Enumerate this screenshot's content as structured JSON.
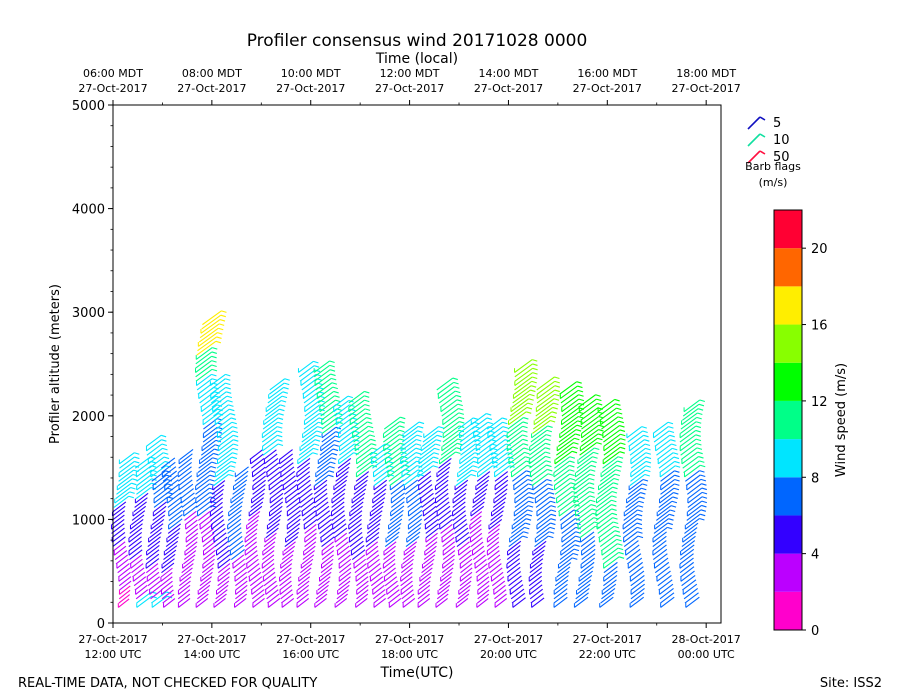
{
  "chart_data": {
    "type": "wind-barb-profile",
    "title": "Profiler consensus wind 20171028 0000",
    "top_axis_title": "Time (local)",
    "top_ticks": [
      {
        "hour": 12,
        "line1": "06:00 MDT",
        "line2": "27-Oct-2017"
      },
      {
        "hour": 14,
        "line1": "08:00 MDT",
        "line2": "27-Oct-2017"
      },
      {
        "hour": 16,
        "line1": "10:00 MDT",
        "line2": "27-Oct-2017"
      },
      {
        "hour": 18,
        "line1": "12:00 MDT",
        "line2": "27-Oct-2017"
      },
      {
        "hour": 20,
        "line1": "14:00 MDT",
        "line2": "27-Oct-2017"
      },
      {
        "hour": 22,
        "line1": "16:00 MDT",
        "line2": "27-Oct-2017"
      },
      {
        "hour": 24,
        "line1": "18:00 MDT",
        "line2": "27-Oct-2017"
      }
    ],
    "bottom_ticks": [
      {
        "hour": 12,
        "line1": "27-Oct-2017",
        "line2": "12:00 UTC"
      },
      {
        "hour": 14,
        "line1": "27-Oct-2017",
        "line2": "14:00 UTC"
      },
      {
        "hour": 16,
        "line1": "27-Oct-2017",
        "line2": "16:00 UTC"
      },
      {
        "hour": 18,
        "line1": "27-Oct-2017",
        "line2": "18:00 UTC"
      },
      {
        "hour": 20,
        "line1": "27-Oct-2017",
        "line2": "20:00 UTC"
      },
      {
        "hour": 22,
        "line1": "27-Oct-2017",
        "line2": "22:00 UTC"
      },
      {
        "hour": 24,
        "line1": "28-Oct-2017",
        "line2": "00:00 UTC"
      }
    ],
    "xlabel": "Time(UTC)",
    "ylabel": "Profiler altitude (meters)",
    "x_range_hours_utc": [
      12,
      24.3
    ],
    "ylim": [
      0,
      5000
    ],
    "y_major_ticks": [
      0,
      1000,
      2000,
      3000,
      4000,
      5000
    ],
    "y_minor_step": 200,
    "legend": {
      "title_line1": "Barb flags",
      "title_line2": "(m/s)",
      "entries": [
        {
          "label": "5",
          "color": "#1010c0"
        },
        {
          "label": "10",
          "color": "#10e0a0"
        },
        {
          "label": "50",
          "color": "#ff1040"
        }
      ]
    },
    "colorbar": {
      "label": "Wind speed (m/s)",
      "range": [
        0,
        22
      ],
      "ticks": [
        0,
        4,
        8,
        12,
        16,
        20
      ],
      "bins": [
        {
          "from": 0,
          "to": 2,
          "color": "#ff00cc"
        },
        {
          "from": 2,
          "to": 4,
          "color": "#bb00ff"
        },
        {
          "from": 4,
          "to": 6,
          "color": "#3300ff"
        },
        {
          "from": 6,
          "to": 8,
          "color": "#0066ff"
        },
        {
          "from": 8,
          "to": 10,
          "color": "#00e5ff"
        },
        {
          "from": 10,
          "to": 12,
          "color": "#00ff88"
        },
        {
          "from": 12,
          "to": 14,
          "color": "#00ff00"
        },
        {
          "from": 14,
          "to": 16,
          "color": "#88ff00"
        },
        {
          "from": 16,
          "to": 18,
          "color": "#ffee00"
        },
        {
          "from": 18,
          "to": 20,
          "color": "#ff6600"
        },
        {
          "from": 20,
          "to": 22,
          "color": "#ff0033"
        }
      ]
    },
    "profiles": [
      {
        "hour": 12.05,
        "top": 1560,
        "segments": [
          [
            0,
            300,
            1.5
          ],
          [
            300,
            700,
            3
          ],
          [
            700,
            1100,
            5
          ],
          [
            1100,
            1600,
            9
          ]
        ]
      },
      {
        "hour": 12.4,
        "top": 1500,
        "segments": [
          [
            200,
            600,
            3
          ],
          [
            600,
            1200,
            5
          ],
          [
            1200,
            1500,
            9
          ]
        ]
      },
      {
        "hour": 12.75,
        "top": 1720,
        "segments": [
          [
            200,
            500,
            3
          ],
          [
            500,
            1100,
            5
          ],
          [
            1100,
            1400,
            7
          ],
          [
            1400,
            1720,
            9
          ]
        ]
      },
      {
        "hour": 13.05,
        "top": 1530,
        "segments": [
          [
            150,
            450,
            2.5
          ],
          [
            450,
            900,
            4.5
          ],
          [
            900,
            1530,
            6.5
          ]
        ]
      },
      {
        "hour": 13.4,
        "top": 1600,
        "segments": [
          [
            150,
            1000,
            3
          ],
          [
            1000,
            1600,
            6
          ]
        ]
      },
      {
        "hour": 13.75,
        "top": 2880,
        "segments": [
          [
            150,
            1000,
            3
          ],
          [
            1000,
            1900,
            7
          ],
          [
            1900,
            2300,
            9
          ],
          [
            2300,
            2550,
            11
          ],
          [
            2550,
            2880,
            16.5
          ]
        ]
      },
      {
        "hour": 14.05,
        "top": 2300,
        "segments": [
          [
            150,
            500,
            3
          ],
          [
            500,
            1300,
            4
          ],
          [
            1300,
            2300,
            9
          ]
        ]
      },
      {
        "hour": 14.4,
        "top": 1420,
        "segments": [
          [
            150,
            600,
            3
          ],
          [
            600,
            1420,
            6
          ]
        ]
      },
      {
        "hour": 14.75,
        "top": 1600,
        "segments": [
          [
            150,
            1000,
            3
          ],
          [
            1000,
            1600,
            5
          ]
        ]
      },
      {
        "hour": 15.1,
        "top": 2260,
        "segments": [
          [
            150,
            800,
            3
          ],
          [
            800,
            1600,
            5
          ],
          [
            1600,
            2260,
            9
          ]
        ]
      },
      {
        "hour": 15.45,
        "top": 1600,
        "segments": [
          [
            150,
            700,
            3
          ],
          [
            700,
            1600,
            5.5
          ]
        ]
      },
      {
        "hour": 15.8,
        "top": 2420,
        "segments": [
          [
            150,
            900,
            3
          ],
          [
            900,
            1500,
            5
          ],
          [
            1500,
            2420,
            9
          ]
        ]
      },
      {
        "hour": 16.15,
        "top": 2420,
        "segments": [
          [
            150,
            700,
            3
          ],
          [
            700,
            1300,
            5
          ],
          [
            1300,
            1800,
            7
          ],
          [
            1800,
            2420,
            10
          ]
        ]
      },
      {
        "hour": 16.5,
        "top": 2120,
        "segments": [
          [
            150,
            800,
            3
          ],
          [
            800,
            1500,
            5
          ],
          [
            1500,
            2120,
            9
          ]
        ]
      },
      {
        "hour": 16.85,
        "top": 2130,
        "segments": [
          [
            150,
            600,
            3
          ],
          [
            600,
            1400,
            5
          ],
          [
            1400,
            2130,
            10
          ]
        ]
      },
      {
        "hour": 17.2,
        "top": 1650,
        "segments": [
          [
            150,
            700,
            3
          ],
          [
            700,
            1300,
            5
          ],
          [
            1300,
            1650,
            9
          ]
        ]
      },
      {
        "hour": 17.55,
        "top": 1900,
        "segments": [
          [
            150,
            700,
            3
          ],
          [
            700,
            1300,
            6
          ],
          [
            1300,
            1900,
            11
          ]
        ]
      },
      {
        "hour": 17.9,
        "top": 1850,
        "segments": [
          [
            150,
            700,
            3
          ],
          [
            700,
            1300,
            6
          ],
          [
            1300,
            1850,
            9.5
          ]
        ]
      },
      {
        "hour": 18.25,
        "top": 1820,
        "segments": [
          [
            150,
            800,
            3
          ],
          [
            800,
            1400,
            5
          ],
          [
            1400,
            1820,
            9
          ]
        ]
      },
      {
        "hour": 18.6,
        "top": 2260,
        "segments": [
          [
            150,
            900,
            3
          ],
          [
            900,
            1500,
            5
          ],
          [
            1500,
            2260,
            11
          ]
        ]
      },
      {
        "hour": 18.95,
        "top": 1880,
        "segments": [
          [
            150,
            700,
            3
          ],
          [
            700,
            1300,
            5
          ],
          [
            1300,
            1880,
            9
          ]
        ]
      },
      {
        "hour": 19.3,
        "top": 1920,
        "segments": [
          [
            150,
            1000,
            2.5
          ],
          [
            1000,
            1400,
            5
          ],
          [
            1400,
            1920,
            9
          ]
        ]
      },
      {
        "hour": 19.65,
        "top": 1900,
        "segments": [
          [
            150,
            900,
            3
          ],
          [
            900,
            1400,
            5
          ],
          [
            1400,
            1900,
            9
          ]
        ]
      },
      {
        "hour": 20.05,
        "top": 2420,
        "segments": [
          [
            150,
            700,
            5
          ],
          [
            700,
            1400,
            7
          ],
          [
            1400,
            1900,
            10
          ],
          [
            1900,
            2420,
            14
          ]
        ]
      },
      {
        "hour": 20.5,
        "top": 2280,
        "segments": [
          [
            150,
            700,
            4.5
          ],
          [
            700,
            1300,
            7
          ],
          [
            1300,
            1800,
            11
          ],
          [
            1800,
            2280,
            14
          ]
        ]
      },
      {
        "hour": 21.0,
        "top": 2230,
        "segments": [
          [
            150,
            500,
            6
          ],
          [
            500,
            1000,
            7
          ],
          [
            1000,
            1500,
            10
          ],
          [
            1500,
            2230,
            13
          ]
        ]
      },
      {
        "hour": 21.4,
        "top": 2100,
        "segments": [
          [
            150,
            800,
            6.5
          ],
          [
            800,
            1600,
            10
          ],
          [
            1600,
            2100,
            13
          ]
        ]
      },
      {
        "hour": 21.85,
        "top": 2080,
        "segments": [
          [
            150,
            500,
            6.5
          ],
          [
            500,
            1500,
            10
          ],
          [
            1500,
            2080,
            12
          ]
        ]
      },
      {
        "hour": 22.4,
        "top": 1820,
        "segments": [
          [
            150,
            700,
            6.5
          ],
          [
            700,
            1300,
            7
          ],
          [
            1300,
            1820,
            9
          ]
        ]
      },
      {
        "hour": 23.0,
        "top": 1850,
        "segments": [
          [
            150,
            800,
            6.5
          ],
          [
            800,
            1400,
            7
          ],
          [
            1400,
            1850,
            9
          ]
        ]
      },
      {
        "hour": 23.55,
        "top": 2050,
        "segments": [
          [
            150,
            900,
            6.5
          ],
          [
            900,
            1400,
            7.5
          ],
          [
            1400,
            2050,
            10.5
          ]
        ]
      }
    ]
  },
  "footer_left": "REAL-TIME DATA, NOT CHECKED FOR QUALITY",
  "footer_right": "Site: ISS2"
}
